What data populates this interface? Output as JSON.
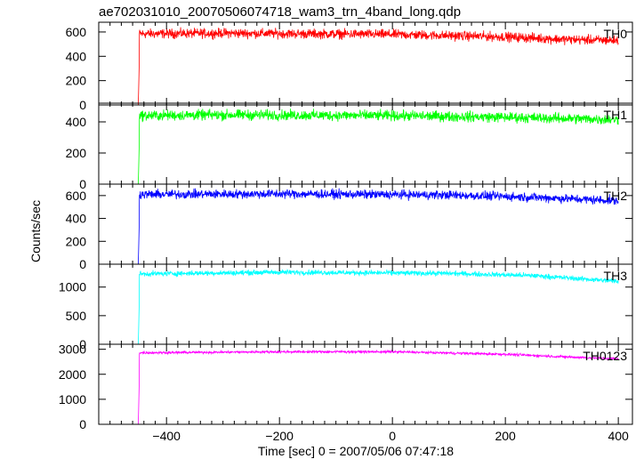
{
  "title": "ae702031010_20070506074718_wam3_trn_4band_long.qdp",
  "xlabel": "Time [sec] 0 = 2007/05/06 07:47:18",
  "ylabel": "Counts/sec",
  "chart_data": [
    {
      "type": "line",
      "name": "TH0",
      "color": "#ff0000",
      "xlim": [
        -520,
        425
      ],
      "ylim": [
        0,
        680
      ],
      "yticks": [
        0,
        200,
        400,
        600
      ],
      "xticks": [
        -400,
        -200,
        0,
        200,
        400
      ],
      "baseline": 0,
      "step_time": -450,
      "profile": [
        [
          -450,
          585
        ],
        [
          -300,
          590
        ],
        [
          0,
          580
        ],
        [
          200,
          560
        ],
        [
          300,
          540
        ],
        [
          400,
          530
        ]
      ],
      "noise": 35,
      "grid": false
    },
    {
      "type": "line",
      "name": "TH1",
      "color": "#00ff00",
      "xlim": [
        -520,
        425
      ],
      "ylim": [
        0,
        520
      ],
      "yticks": [
        0,
        200,
        400
      ],
      "xticks": [
        -400,
        -200,
        0,
        200,
        400
      ],
      "baseline": 0,
      "step_time": -450,
      "profile": [
        [
          -450,
          440
        ],
        [
          -300,
          445
        ],
        [
          0,
          440
        ],
        [
          200,
          430
        ],
        [
          400,
          415
        ]
      ],
      "noise": 30,
      "grid": false
    },
    {
      "type": "line",
      "name": "TH2",
      "color": "#0000ff",
      "xlim": [
        -520,
        425
      ],
      "ylim": [
        0,
        700
      ],
      "yticks": [
        0,
        200,
        400,
        600
      ],
      "xticks": [
        -400,
        -200,
        0,
        200,
        400
      ],
      "baseline": 0,
      "step_time": -450,
      "profile": [
        [
          -450,
          610
        ],
        [
          -200,
          615
        ],
        [
          100,
          605
        ],
        [
          250,
          585
        ],
        [
          400,
          555
        ]
      ],
      "noise": 35,
      "grid": false
    },
    {
      "type": "line",
      "name": "TH3",
      "color": "#00ffff",
      "xlim": [
        -520,
        425
      ],
      "ylim": [
        0,
        1400
      ],
      "yticks": [
        0,
        500,
        1000
      ],
      "xticks": [
        -400,
        -200,
        0,
        200,
        400
      ],
      "baseline": 0,
      "step_time": -450,
      "profile": [
        [
          -450,
          1230
        ],
        [
          -200,
          1260
        ],
        [
          100,
          1240
        ],
        [
          250,
          1200
        ],
        [
          400,
          1100
        ]
      ],
      "noise": 40,
      "grid": false
    },
    {
      "type": "line",
      "name": "TH0123",
      "color": "#ff00ff",
      "xlim": [
        -520,
        425
      ],
      "ylim": [
        0,
        3200
      ],
      "yticks": [
        0,
        1000,
        2000,
        3000
      ],
      "xticks": [
        -400,
        -200,
        0,
        200,
        400
      ],
      "xticklabels": [
        "−400",
        "−200",
        "0",
        "200",
        "400"
      ],
      "baseline": 0,
      "step_time": -450,
      "profile": [
        [
          -450,
          2860
        ],
        [
          -200,
          2900
        ],
        [
          0,
          2900
        ],
        [
          200,
          2800
        ],
        [
          300,
          2700
        ],
        [
          400,
          2620
        ]
      ],
      "noise": 45,
      "grid": false
    }
  ]
}
